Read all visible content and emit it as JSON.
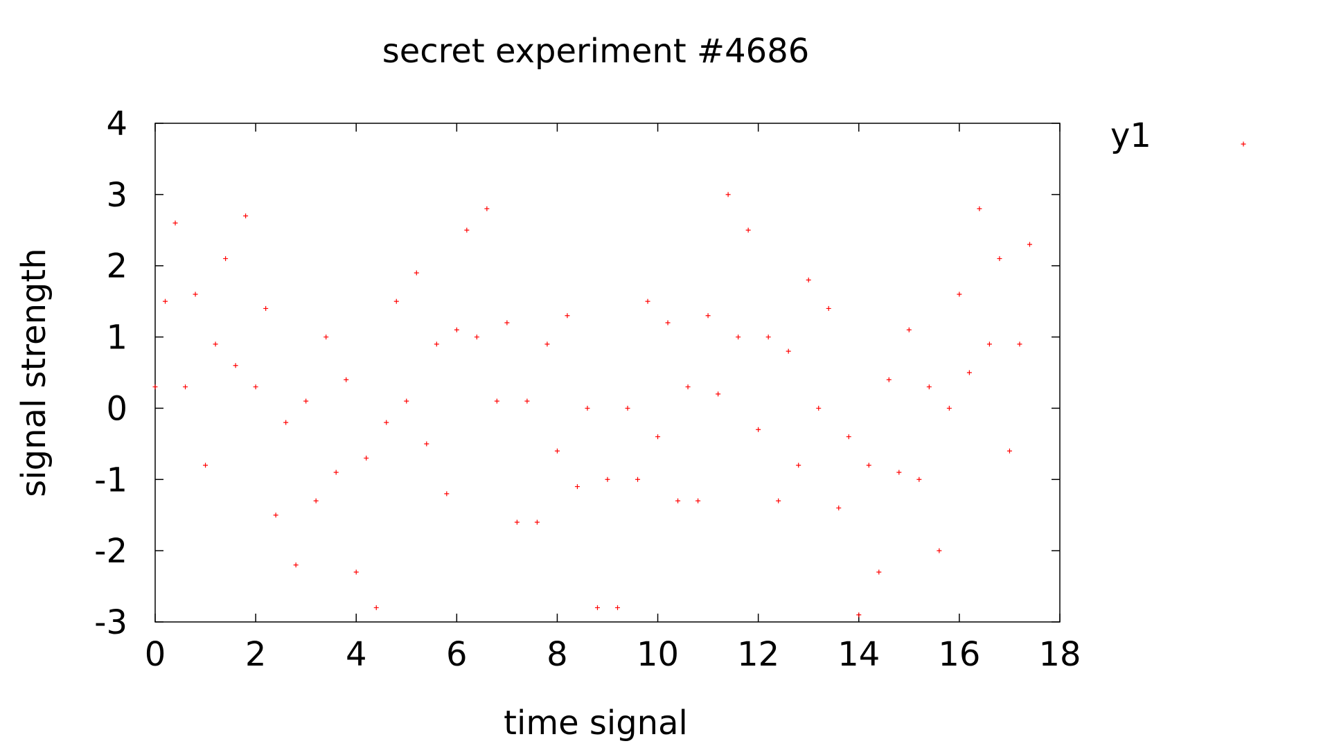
{
  "chart_data": {
    "type": "scatter",
    "title": "secret experiment #4686",
    "xlabel": "time signal",
    "ylabel": "signal strength",
    "xlim": [
      0,
      18
    ],
    "ylim": [
      -3,
      4
    ],
    "xticks": [
      "0",
      "2",
      "4",
      "6",
      "8",
      "10",
      "12",
      "14",
      "16",
      "18"
    ],
    "yticks": [
      "-3",
      "-2",
      "-1",
      "0",
      "1",
      "2",
      "3",
      "4"
    ],
    "grid": false,
    "legend_position": "top-right outside",
    "marker": "+",
    "color": "#ff0000",
    "series": [
      {
        "name": "y1",
        "x": [
          0.0,
          0.2,
          0.4,
          0.6,
          0.8,
          1.0,
          1.2,
          1.4,
          1.6,
          1.8,
          2.0,
          2.2,
          2.4,
          2.6,
          2.8,
          3.0,
          3.2,
          3.4,
          3.6,
          3.8,
          4.0,
          4.2,
          4.4,
          4.6,
          4.8,
          5.0,
          5.2,
          5.4,
          5.6,
          5.8,
          6.0,
          6.2,
          6.4,
          6.6,
          6.8,
          7.0,
          7.2,
          7.4,
          7.6,
          7.8,
          8.0,
          8.2,
          8.4,
          8.6,
          8.8,
          9.0,
          9.2,
          9.4,
          9.6,
          9.8,
          10.0,
          10.2,
          10.4,
          10.6,
          10.8,
          11.0,
          11.2,
          11.4,
          11.6,
          11.8,
          12.0,
          12.2,
          12.4,
          12.6,
          12.8,
          13.0,
          13.2,
          13.4,
          13.6,
          13.8,
          14.0,
          14.2,
          14.4,
          14.6,
          14.8,
          15.0,
          15.2,
          15.4,
          15.6,
          15.8,
          16.0,
          16.2,
          16.4,
          16.6,
          16.8,
          17.0,
          17.2,
          17.4
        ],
        "y": [
          0.3,
          1.5,
          2.6,
          0.3,
          1.6,
          -0.8,
          0.9,
          2.1,
          0.6,
          2.7,
          0.3,
          1.4,
          -1.5,
          -0.2,
          -2.2,
          0.1,
          -1.3,
          1.0,
          -0.9,
          0.4,
          -2.3,
          -0.7,
          -2.8,
          -0.2,
          1.5,
          0.1,
          1.9,
          -0.5,
          0.9,
          -1.2,
          1.1,
          2.5,
          1.0,
          2.8,
          0.1,
          1.2,
          -1.6,
          0.1,
          -1.6,
          0.9,
          -0.6,
          1.3,
          -1.1,
          0.0,
          -2.8,
          -1.0,
          -2.8,
          0.0,
          -1.0,
          1.5,
          -0.4,
          1.2,
          -1.3,
          0.3,
          -1.3,
          1.3,
          0.2,
          3.0,
          1.0,
          2.5,
          -0.3,
          1.0,
          -1.3,
          0.8,
          -0.8,
          1.8,
          0.0,
          1.4,
          -1.4,
          -0.4,
          -2.9,
          -0.8,
          -2.3,
          0.4,
          -0.9,
          1.1,
          -1.0,
          0.3,
          -2.0,
          0.0,
          1.6,
          0.5,
          2.8,
          0.9,
          2.1,
          -0.6,
          0.9,
          2.3
        ]
      }
    ]
  }
}
